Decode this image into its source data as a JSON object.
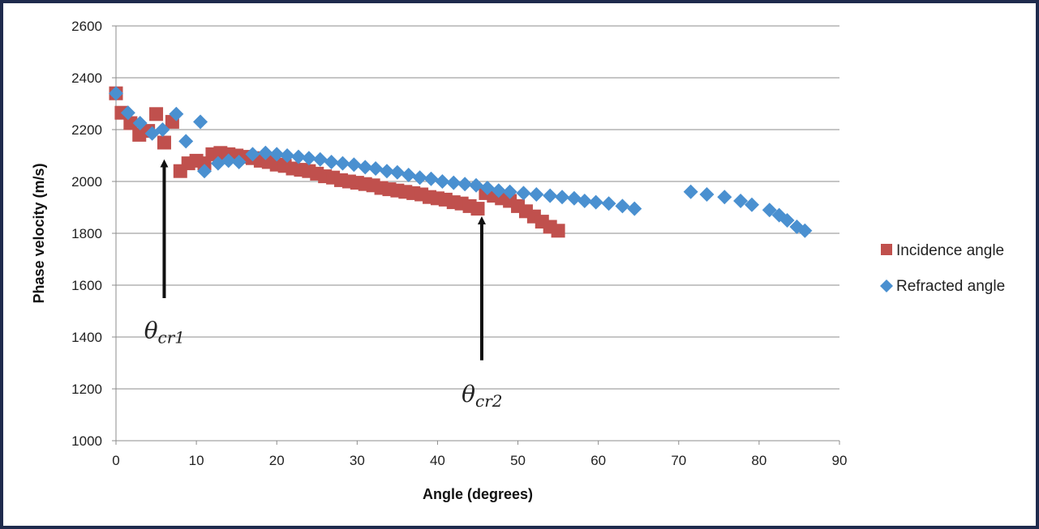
{
  "chart_data": {
    "type": "scatter",
    "xlabel": "Angle (degrees)",
    "ylabel": "Phase velocity (m/s)",
    "xlim": [
      0,
      90
    ],
    "ylim": [
      1000,
      2600
    ],
    "x_ticks": [
      0,
      10,
      20,
      30,
      40,
      50,
      60,
      70,
      80,
      90
    ],
    "y_ticks": [
      1000,
      1200,
      1400,
      1600,
      1800,
      2000,
      2200,
      2400,
      2600
    ],
    "grid": "horizontal",
    "legend_position": "right",
    "series": [
      {
        "name": "Incidence angle",
        "marker": "square",
        "color": "#c0504d",
        "points": [
          [
            0,
            2340
          ],
          [
            0.7,
            2265
          ],
          [
            1.8,
            2225
          ],
          [
            2.9,
            2180
          ],
          [
            4.0,
            2195
          ],
          [
            5.0,
            2260
          ],
          [
            6.0,
            2150
          ],
          [
            7.0,
            2230
          ],
          [
            8.0,
            2040
          ],
          [
            9.0,
            2070
          ],
          [
            10.0,
            2080
          ],
          [
            11.0,
            2070
          ],
          [
            12.0,
            2105
          ],
          [
            13.0,
            2110
          ],
          [
            14.0,
            2105
          ],
          [
            15.0,
            2100
          ],
          [
            16.0,
            2095
          ],
          [
            17.0,
            2090
          ],
          [
            18.0,
            2080
          ],
          [
            19.0,
            2075
          ],
          [
            20.0,
            2065
          ],
          [
            21.0,
            2060
          ],
          [
            22.0,
            2050
          ],
          [
            23.0,
            2045
          ],
          [
            24.0,
            2040
          ],
          [
            25.0,
            2030
          ],
          [
            26.0,
            2020
          ],
          [
            27.0,
            2015
          ],
          [
            28.0,
            2005
          ],
          [
            29.0,
            2000
          ],
          [
            30.0,
            1995
          ],
          [
            31.0,
            1990
          ],
          [
            32.0,
            1985
          ],
          [
            33.0,
            1975
          ],
          [
            34.0,
            1970
          ],
          [
            35.0,
            1965
          ],
          [
            36.0,
            1960
          ],
          [
            37.0,
            1955
          ],
          [
            38.0,
            1950
          ],
          [
            39.0,
            1940
          ],
          [
            40.0,
            1935
          ],
          [
            41.0,
            1930
          ],
          [
            42.0,
            1920
          ],
          [
            43.0,
            1915
          ],
          [
            44.0,
            1905
          ],
          [
            45.0,
            1895
          ],
          [
            46.0,
            1955
          ],
          [
            47.0,
            1945
          ],
          [
            48.0,
            1935
          ],
          [
            49.0,
            1925
          ],
          [
            50.0,
            1905
          ],
          [
            51.0,
            1885
          ],
          [
            52.0,
            1865
          ],
          [
            53.0,
            1845
          ],
          [
            54.0,
            1825
          ],
          [
            55.0,
            1810
          ]
        ]
      },
      {
        "name": "Refracted angle",
        "marker": "diamond",
        "color": "#4a90d0",
        "points": [
          [
            0,
            2340
          ],
          [
            1.5,
            2265
          ],
          [
            3.0,
            2225
          ],
          [
            4.5,
            2185
          ],
          [
            5.8,
            2200
          ],
          [
            7.5,
            2260
          ],
          [
            8.7,
            2155
          ],
          [
            10.5,
            2230
          ],
          [
            11.0,
            2040
          ],
          [
            12.7,
            2070
          ],
          [
            14.0,
            2080
          ],
          [
            15.3,
            2075
          ],
          [
            17.0,
            2105
          ],
          [
            18.6,
            2110
          ],
          [
            20.0,
            2105
          ],
          [
            21.3,
            2100
          ],
          [
            22.7,
            2095
          ],
          [
            24.0,
            2090
          ],
          [
            25.4,
            2085
          ],
          [
            26.8,
            2075
          ],
          [
            28.2,
            2070
          ],
          [
            29.6,
            2065
          ],
          [
            31.0,
            2055
          ],
          [
            32.3,
            2050
          ],
          [
            33.7,
            2040
          ],
          [
            35.0,
            2035
          ],
          [
            36.4,
            2025
          ],
          [
            37.8,
            2015
          ],
          [
            39.2,
            2010
          ],
          [
            40.6,
            2000
          ],
          [
            42.0,
            1995
          ],
          [
            43.4,
            1990
          ],
          [
            44.8,
            1985
          ],
          [
            46.2,
            1975
          ],
          [
            47.6,
            1965
          ],
          [
            49.0,
            1960
          ],
          [
            50.7,
            1955
          ],
          [
            52.3,
            1950
          ],
          [
            54.0,
            1945
          ],
          [
            55.5,
            1940
          ],
          [
            57.0,
            1935
          ],
          [
            58.3,
            1925
          ],
          [
            59.7,
            1920
          ],
          [
            61.3,
            1915
          ],
          [
            63.0,
            1905
          ],
          [
            64.5,
            1895
          ],
          [
            71.5,
            1960
          ],
          [
            73.5,
            1950
          ],
          [
            75.7,
            1940
          ],
          [
            77.7,
            1925
          ],
          [
            79.1,
            1910
          ],
          [
            81.3,
            1890
          ],
          [
            82.5,
            1870
          ],
          [
            83.5,
            1850
          ],
          [
            84.7,
            1825
          ],
          [
            85.7,
            1810
          ]
        ]
      }
    ],
    "annotations": [
      {
        "label": "θcr1",
        "base": "θ",
        "sub": "cr1",
        "arrow_x": 6.0,
        "arrow_from_y": 1550,
        "arrow_to_y": 2070,
        "text_x": 3.5,
        "text_y": 1395
      },
      {
        "label": "θcr2",
        "base": "θ",
        "sub": "cr2",
        "arrow_x": 45.5,
        "arrow_from_y": 1310,
        "arrow_to_y": 1850,
        "text_x": 43.0,
        "text_y": 1150
      }
    ]
  }
}
